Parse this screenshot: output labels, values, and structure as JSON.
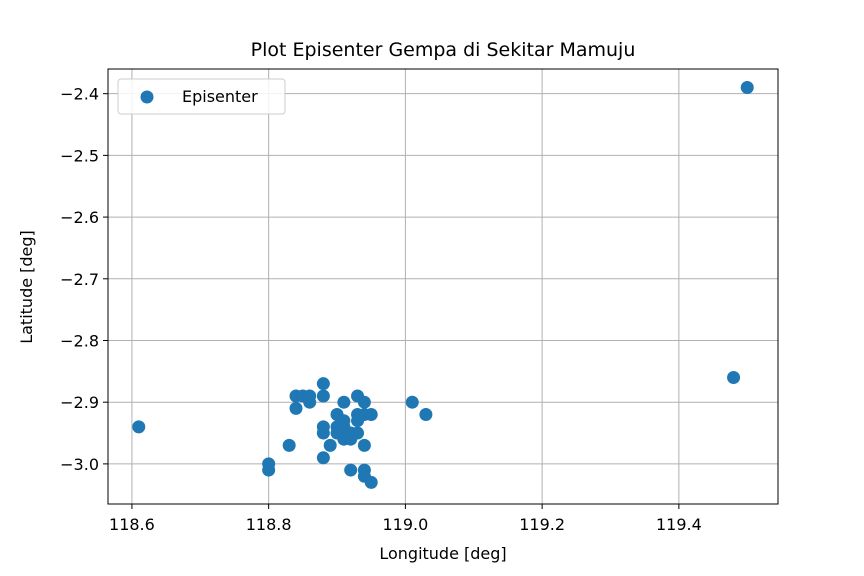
{
  "chart_data": {
    "type": "scatter",
    "title": "Plot Episenter Gempa di Sekitar Mamuju",
    "xlabel": "Longitude [deg]",
    "ylabel": "Latitude [deg]",
    "xlim": [
      118.565,
      119.545
    ],
    "ylim": [
      -3.065,
      -2.36
    ],
    "xticks": [
      118.6,
      118.8,
      119.0,
      119.2,
      119.4
    ],
    "xtick_labels": [
      "118.6",
      "118.8",
      "119.0",
      "119.2",
      "119.4"
    ],
    "yticks": [
      -2.4,
      -2.5,
      -2.6,
      -2.7,
      -2.8,
      -2.9,
      -3.0
    ],
    "ytick_labels": [
      "−2.4",
      "−2.5",
      "−2.6",
      "−2.7",
      "−2.8",
      "−2.9",
      "−3.0"
    ],
    "grid": true,
    "legend": {
      "position": "top-left",
      "entries": [
        "Episenter"
      ]
    },
    "marker_color": "#1f77b4",
    "series": [
      {
        "name": "Episenter",
        "points": [
          {
            "x": 118.61,
            "y": -2.94
          },
          {
            "x": 118.8,
            "y": -3.0
          },
          {
            "x": 118.8,
            "y": -3.01
          },
          {
            "x": 118.83,
            "y": -2.97
          },
          {
            "x": 118.84,
            "y": -2.89
          },
          {
            "x": 118.84,
            "y": -2.91
          },
          {
            "x": 118.85,
            "y": -2.89
          },
          {
            "x": 118.86,
            "y": -2.89
          },
          {
            "x": 118.86,
            "y": -2.9
          },
          {
            "x": 118.88,
            "y": -2.87
          },
          {
            "x": 118.88,
            "y": -2.89
          },
          {
            "x": 118.88,
            "y": -2.94
          },
          {
            "x": 118.88,
            "y": -2.95
          },
          {
            "x": 118.88,
            "y": -2.99
          },
          {
            "x": 118.89,
            "y": -2.97
          },
          {
            "x": 118.9,
            "y": -2.92
          },
          {
            "x": 118.9,
            "y": -2.94
          },
          {
            "x": 118.9,
            "y": -2.95
          },
          {
            "x": 118.91,
            "y": -2.9
          },
          {
            "x": 118.91,
            "y": -2.93
          },
          {
            "x": 118.91,
            "y": -2.94
          },
          {
            "x": 118.91,
            "y": -2.96
          },
          {
            "x": 118.92,
            "y": -2.95
          },
          {
            "x": 118.92,
            "y": -2.96
          },
          {
            "x": 118.92,
            "y": -3.01
          },
          {
            "x": 118.93,
            "y": -2.89
          },
          {
            "x": 118.93,
            "y": -2.92
          },
          {
            "x": 118.93,
            "y": -2.93
          },
          {
            "x": 118.93,
            "y": -2.95
          },
          {
            "x": 118.94,
            "y": -2.9
          },
          {
            "x": 118.94,
            "y": -2.92
          },
          {
            "x": 118.94,
            "y": -2.97
          },
          {
            "x": 118.94,
            "y": -3.01
          },
          {
            "x": 118.94,
            "y": -3.02
          },
          {
            "x": 118.95,
            "y": -2.92
          },
          {
            "x": 118.95,
            "y": -3.03
          },
          {
            "x": 119.01,
            "y": -2.9
          },
          {
            "x": 119.03,
            "y": -2.92
          },
          {
            "x": 119.48,
            "y": -2.86
          },
          {
            "x": 119.5,
            "y": -2.39
          }
        ]
      }
    ]
  }
}
